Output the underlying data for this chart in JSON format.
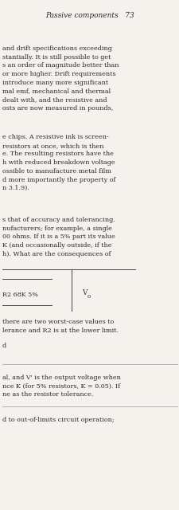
{
  "bg_color": "#f5f2ee",
  "text_color": "#2a2a2a",
  "header_text": "Passive components   73",
  "header_fontsize": 6.5,
  "para1": "and drift specifications exceeding\nstantially. It is still possible to get\ns an order of magnitude better than\nor more higher. Drift requirements\nintroduce many more significant\nmal emf, mechanical and thermal\ndealt with, and the resistive and\nosts are now measured in pounds,",
  "para2": "e chips. A resistive ink is screen-\nresistors at once, which is then\ne. The resulting resistors have the\nh with reduced breakdown voltage\nossible to manufacture metal film\nd more importantly the property of\nn 3.1.9).",
  "para3": "s that of accuracy and tolerancing.\nnufacturers; for example, a single\n00 ohms. If it is a 5% part its value\nK (and occasionally outside, if the\nh). What are the consequences of",
  "diagram_label": "R2 68K 5%",
  "diagram_vo": "V",
  "diagram_vo_sub": "o",
  "para4": "there are two worst-case values to\nlerance and R2 is at the lower limit.",
  "para5": "d",
  "para6": "al, and V' is the output voltage when\nnce K (for 5% resistors, K = 0.05). If\nne as the resistor tolerance.",
  "para7": "d to out-of-limits circuit operation;",
  "line_color": "#aaaaaa",
  "fontsize_body": 5.8,
  "font_family": "DejaVu Serif"
}
